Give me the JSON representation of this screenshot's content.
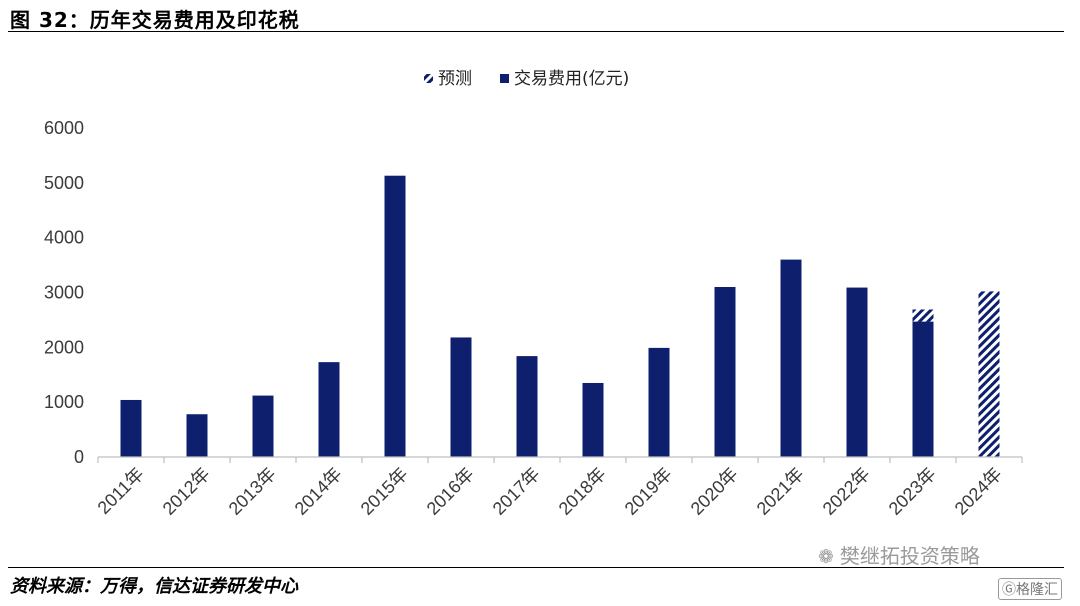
{
  "header": {
    "title": "图 32：历年交易费用及印花税"
  },
  "footer": {
    "source": "资料来源：万得，信达证券研发中心",
    "watermark": "樊继拓投资策略",
    "logo": "格隆汇"
  },
  "chart_data": {
    "type": "bar",
    "title": "图 32：历年交易费用及印花税",
    "categories": [
      "2011年",
      "2012年",
      "2013年",
      "2014年",
      "2015年",
      "2016年",
      "2017年",
      "2018年",
      "2019年",
      "2020年",
      "2021年",
      "2022年",
      "2023年",
      "2024年"
    ],
    "series": [
      {
        "name": "交易费用(亿元)",
        "values": [
          1040,
          780,
          1120,
          1730,
          5130,
          2180,
          1840,
          1350,
          1990,
          3100,
          3600,
          3090,
          2470,
          0
        ],
        "color": "#0d1f6d",
        "pattern": "solid"
      },
      {
        "name": "预测",
        "values": [
          0,
          0,
          0,
          0,
          0,
          0,
          0,
          0,
          0,
          0,
          0,
          0,
          220,
          3020
        ],
        "color": "#0d1f6d",
        "pattern": "diagonal-hatch"
      }
    ],
    "stacked": true,
    "legend": [
      "预测",
      "交易费用(亿元)"
    ],
    "legend_position": "top-center",
    "ylim": [
      0,
      6000
    ],
    "yticks": [
      "6000",
      "5000",
      "4000",
      "3000",
      "2000",
      "1000",
      "0"
    ],
    "grid": false,
    "xlabel": "",
    "ylabel": ""
  }
}
